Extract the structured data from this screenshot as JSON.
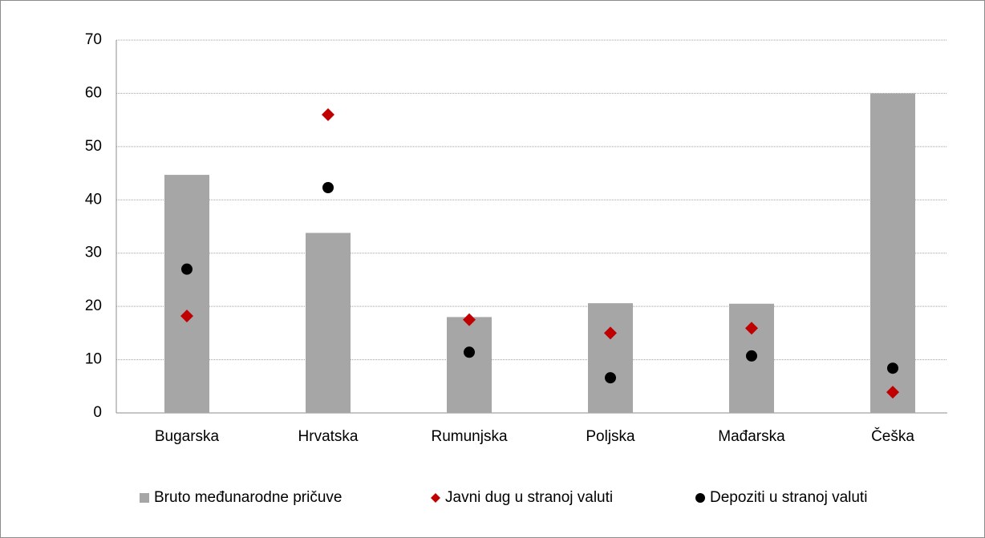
{
  "chart_data": {
    "type": "bar",
    "categories": [
      "Bugarska",
      "Hrvatska",
      "Rumunjska",
      "Poljska",
      "Mađarska",
      "Češka"
    ],
    "series": [
      {
        "name": "Bruto međunarodne pričuve",
        "type": "bar",
        "color": "#a6a6a6",
        "values": [
          44.7,
          33.8,
          18,
          20.6,
          20.5,
          60
        ]
      },
      {
        "name": "Javni dug u stranoj valuti",
        "type": "scatter",
        "marker": "diamond",
        "color": "#c00000",
        "values": [
          18.2,
          56,
          17.5,
          15,
          15.9,
          3.9
        ]
      },
      {
        "name": "Depoziti u stranoj valuti",
        "type": "scatter",
        "marker": "circle",
        "color": "#000000",
        "values": [
          27,
          42.3,
          11.4,
          6.6,
          10.7,
          8.4
        ]
      }
    ],
    "ylim": [
      0,
      70
    ],
    "yticks": [
      0,
      10,
      20,
      30,
      40,
      50,
      60,
      70
    ],
    "grid": true,
    "legend": "bottom"
  }
}
